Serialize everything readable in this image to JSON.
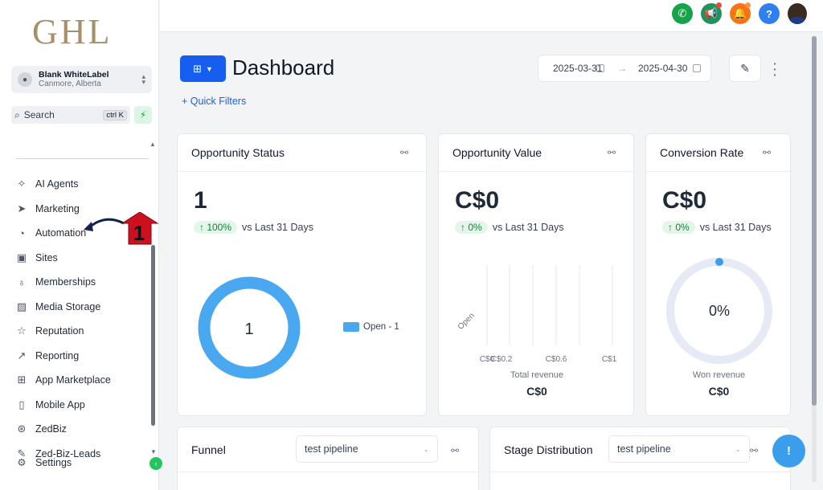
{
  "sidebar": {
    "logo": "GHL",
    "location": {
      "name": "Blank WhiteLabel",
      "city": "Canmore, Alberta"
    },
    "search": {
      "label": "Search",
      "shortcut": "ctrl K"
    },
    "nav": [
      {
        "label": "AI Agents",
        "icon": "sparkle-icon",
        "glyph": "✧"
      },
      {
        "label": "Marketing",
        "icon": "send-icon",
        "glyph": "➤"
      },
      {
        "label": "Automation",
        "icon": "automation-icon",
        "glyph": "◔"
      },
      {
        "label": "Sites",
        "icon": "sites-icon",
        "glyph": "▣"
      },
      {
        "label": "Memberships",
        "icon": "award-icon",
        "glyph": "♁"
      },
      {
        "label": "Media Storage",
        "icon": "image-icon",
        "glyph": "▨"
      },
      {
        "label": "Reputation",
        "icon": "star-icon",
        "glyph": "☆"
      },
      {
        "label": "Reporting",
        "icon": "trend-icon",
        "glyph": "↗"
      },
      {
        "label": "App Marketplace",
        "icon": "grid-icon",
        "glyph": "⊞"
      },
      {
        "label": "Mobile App",
        "icon": "mobile-icon",
        "glyph": "▯"
      },
      {
        "label": "ZedBiz",
        "icon": "zedbiz-icon",
        "glyph": "⊛"
      },
      {
        "label": "Zed-Biz-Leads",
        "icon": "wrench-icon",
        "glyph": "✎"
      }
    ],
    "settings_label": "Settings",
    "annotation_number": "1"
  },
  "header": {
    "title": "Dashboard",
    "quick_filters": "+ Quick Filters",
    "date_start": "2025-03-31",
    "date_end": "2025-04-30",
    "arrow": "→"
  },
  "cards": {
    "opportunity_status": {
      "title": "Opportunity Status",
      "value": "1",
      "pct": "↑ 100%",
      "vs": "vs Last 31 Days",
      "donut_center": "1",
      "legend": "Open - 1"
    },
    "opportunity_value": {
      "title": "Opportunity Value",
      "value": "C$0",
      "pct": "↑ 0%",
      "vs": "vs Last 31 Days",
      "footer_label": "Total revenue",
      "footer_value": "C$0"
    },
    "conversion_rate": {
      "title": "Conversion Rate",
      "value": "C$0",
      "pct": "↑ 0%",
      "vs": "vs Last 31 Days",
      "gauge_center": "0%",
      "footer_label": "Won revenue",
      "footer_value": "C$0"
    },
    "funnel": {
      "title": "Funnel",
      "pipeline": "test pipeline"
    },
    "stage_distribution": {
      "title": "Stage Distribution",
      "pipeline": "test pipeline"
    }
  },
  "colors": {
    "accent": "#155eef",
    "donut": "#4aa8f0",
    "gauge_track": "#e5eaf5",
    "success_bg": "#e3f6e9",
    "success": "#15803d"
  },
  "chart_data": {
    "type": "bar",
    "orientation": "horizontal",
    "categories": [
      "Open"
    ],
    "values": [
      0
    ],
    "xlabel": "Total revenue",
    "ticks": [
      "C$0",
      "C$0.2",
      "C$0.6",
      "C$1"
    ],
    "xlim": [
      0,
      1
    ]
  }
}
